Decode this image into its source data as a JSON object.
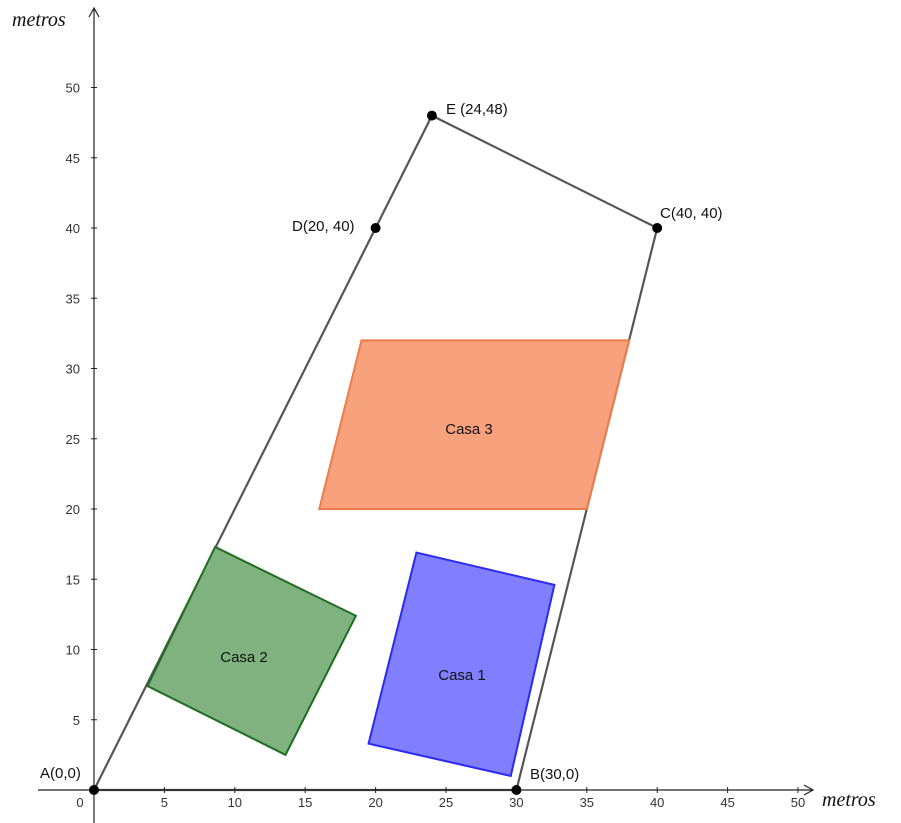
{
  "axes": {
    "x_title": "metros",
    "y_title": "metros",
    "origin_label": "0",
    "x_range": [
      0,
      50
    ],
    "y_range": [
      0,
      50
    ],
    "x_ticks": [
      5,
      10,
      15,
      20,
      25,
      30,
      35,
      40,
      45,
      50
    ],
    "y_ticks": [
      5,
      10,
      15,
      20,
      25,
      30,
      35,
      40,
      45,
      50
    ]
  },
  "points": [
    {
      "id": "A",
      "label": "A(0,0)",
      "x": 0,
      "y": 0
    },
    {
      "id": "B",
      "label": "B(30,0)",
      "x": 30,
      "y": 0
    },
    {
      "id": "C",
      "label": "C(40, 40)",
      "x": 40,
      "y": 40
    },
    {
      "id": "D",
      "label": "D(20, 40)",
      "x": 20,
      "y": 40
    },
    {
      "id": "E",
      "label": "E (24,48)",
      "x": 24,
      "y": 48
    }
  ],
  "boundary_order": [
    "A",
    "B",
    "C",
    "E",
    "D"
  ],
  "houses": [
    {
      "id": "casa-1",
      "label": "Casa 1",
      "fill": "#7f7fff",
      "stroke": "#2a2af0",
      "vertices": [
        [
          22.9,
          16.9
        ],
        [
          32.7,
          14.6
        ],
        [
          29.6,
          1.0
        ],
        [
          19.5,
          3.3
        ]
      ]
    },
    {
      "id": "casa-2",
      "label": "Casa 2",
      "fill": "#7fb27f",
      "stroke": "#1f6e1f",
      "vertices": [
        [
          8.6,
          17.3
        ],
        [
          18.6,
          12.4
        ],
        [
          13.6,
          2.5
        ],
        [
          3.8,
          7.4
        ]
      ]
    },
    {
      "id": "casa-3",
      "label": "Casa 3",
      "fill": "#f7a27c",
      "stroke": "#ee7b4a",
      "vertices": [
        [
          19.0,
          32.0
        ],
        [
          38.0,
          32.0
        ],
        [
          35.0,
          20.0
        ],
        [
          16.0,
          20.0
        ]
      ]
    }
  ],
  "colors": {
    "axis": "#222222",
    "boundary": "#555555",
    "point": "#000000"
  }
}
